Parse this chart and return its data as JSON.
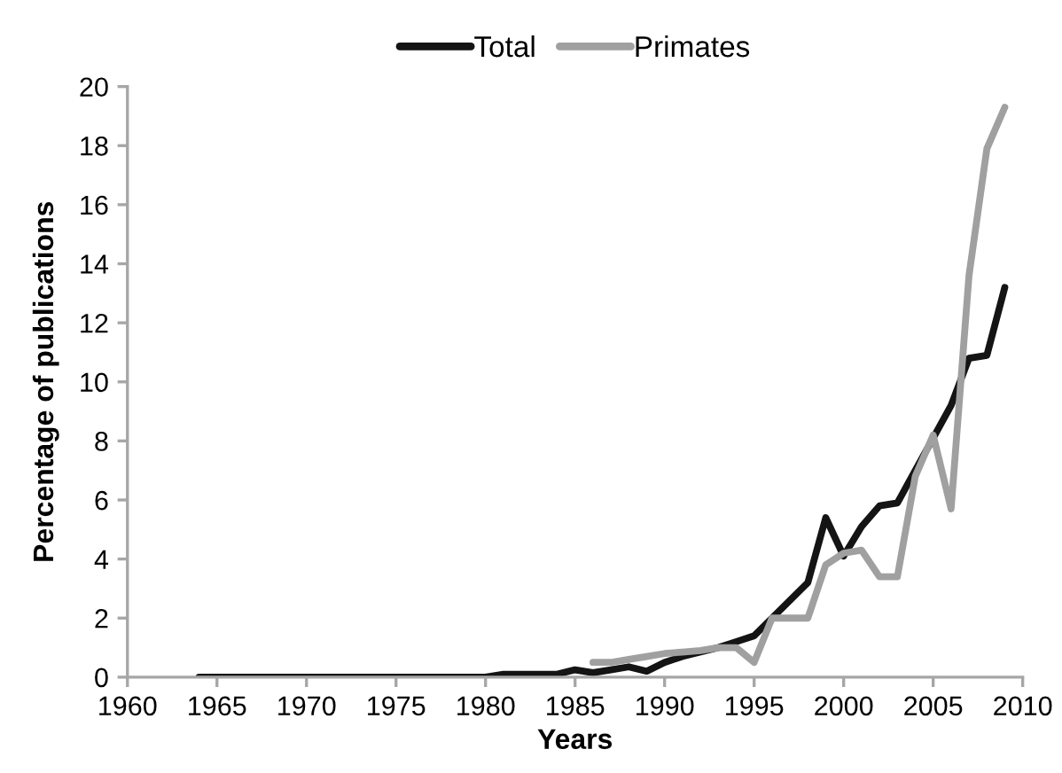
{
  "chart_data": {
    "type": "line",
    "xlabel": "Years",
    "ylabel": "Percentage of publications",
    "x": [
      1964,
      1965,
      1966,
      1967,
      1968,
      1969,
      1970,
      1971,
      1972,
      1973,
      1974,
      1975,
      1976,
      1977,
      1978,
      1979,
      1980,
      1981,
      1982,
      1983,
      1984,
      1985,
      1986,
      1987,
      1988,
      1989,
      1990,
      1991,
      1992,
      1993,
      1994,
      1995,
      1996,
      1997,
      1998,
      1999,
      2000,
      2001,
      2002,
      2003,
      2004,
      2005,
      2006,
      2007,
      2008,
      2009
    ],
    "series": [
      {
        "name": "Total",
        "color": "#141414",
        "values": [
          0,
          0,
          0,
          0,
          0,
          0,
          0,
          0,
          0,
          0,
          0,
          0,
          0,
          0,
          0,
          0,
          0,
          0.1,
          0.1,
          0.1,
          0.1,
          0.25,
          0.15,
          0.25,
          0.35,
          0.2,
          0.5,
          0.7,
          0.85,
          1.0,
          1.2,
          1.4,
          2.0,
          2.6,
          3.2,
          5.4,
          4.1,
          5.1,
          5.8,
          5.9,
          7.0,
          8.1,
          9.2,
          10.8,
          10.9,
          13.2
        ]
      },
      {
        "name": "Primates",
        "color": "#a0a0a0",
        "x": [
          1986,
          1987,
          1988,
          1989,
          1990,
          1991,
          1992,
          1993,
          1994,
          1995,
          1996,
          1997,
          1998,
          1999,
          2000,
          2001,
          2002,
          2003,
          2004,
          2005,
          2006,
          2007,
          2008,
          2009
        ],
        "values": [
          0.5,
          0.5,
          0.6,
          0.7,
          0.8,
          0.85,
          0.9,
          1.0,
          1.0,
          0.5,
          2.0,
          2.0,
          2.0,
          3.8,
          4.2,
          4.3,
          3.4,
          3.4,
          6.8,
          8.2,
          5.7,
          13.6,
          17.9,
          19.3
        ]
      }
    ],
    "xlim": [
      1960,
      2010
    ],
    "xticks": [
      1960,
      1965,
      1970,
      1975,
      1980,
      1985,
      1990,
      1995,
      2000,
      2005,
      2010
    ],
    "ylim": [
      0,
      20
    ],
    "yticks": [
      0,
      2,
      4,
      6,
      8,
      10,
      12,
      14,
      16,
      18,
      20
    ],
    "legend": "top",
    "grid": false,
    "marker": "none",
    "line_style": "solid"
  }
}
